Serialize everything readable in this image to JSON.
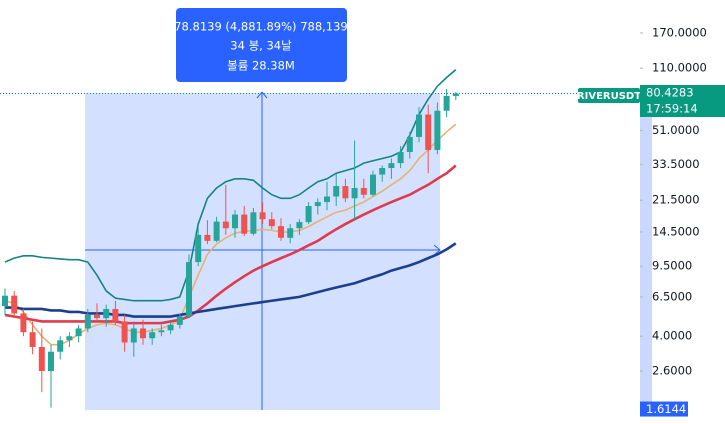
{
  "chart_data": {
    "type": "candlestick",
    "log_scale": true,
    "ylim": [
      1.35,
      255.6
    ],
    "yticks": [
      {
        "value": 170,
        "label": "170.0000"
      },
      {
        "value": 110,
        "label": "110.0000"
      },
      {
        "value": 51,
        "label": "51.0000"
      },
      {
        "value": 33.5,
        "label": "33.5000"
      },
      {
        "value": 21.5,
        "label": "21.5000"
      },
      {
        "value": 14.5,
        "label": "14.5000"
      },
      {
        "value": 9.5,
        "label": "9.5000"
      },
      {
        "value": 6.5,
        "label": "6.5000"
      },
      {
        "value": 4.0,
        "label": "4.0000"
      },
      {
        "value": 2.6,
        "label": "2.6000"
      }
    ],
    "up_color": "#26a69a",
    "down_color": "#ef5350",
    "candles": {
      "open": [
        5.8,
        6.6,
        5.3,
        4.2,
        3.5,
        2.6,
        3.3,
        3.8,
        4.0,
        4.4,
        5.2,
        5.0,
        5.6,
        4.8,
        3.7,
        4.4,
        3.9,
        4.2,
        4.3,
        4.6,
        5.1,
        10.0,
        14.0,
        13.0,
        16.5,
        15.2,
        18.0,
        14.2,
        18.5,
        17.0,
        15.6,
        13.5,
        15.2,
        16.4,
        20.0,
        21.0,
        22.5,
        25.6,
        22.0,
        25.0,
        23.0,
        29.5,
        32.0,
        34.0,
        39.0,
        47.0,
        62.0,
        40.0,
        65.0,
        78.0
      ],
      "high": [
        7.2,
        7.0,
        5.6,
        4.8,
        4.4,
        3.6,
        4.0,
        4.2,
        4.6,
        5.6,
        6.0,
        5.9,
        6.2,
        5.2,
        4.8,
        4.9,
        4.4,
        4.6,
        4.8,
        5.3,
        11.0,
        15.5,
        16.8,
        17.5,
        26.0,
        19.0,
        20.0,
        19.5,
        21.0,
        18.5,
        17.2,
        16.0,
        17.0,
        21.0,
        22.0,
        27.0,
        30.0,
        28.0,
        45.0,
        28.0,
        31.0,
        33.0,
        36.0,
        42.0,
        50.0,
        68.0,
        70.0,
        72.0,
        85.0,
        82.0
      ],
      "low": [
        5.2,
        5.0,
        4.0,
        3.2,
        2.0,
        1.65,
        3.0,
        3.5,
        3.7,
        4.2,
        4.8,
        4.5,
        4.6,
        3.3,
        3.1,
        3.6,
        3.6,
        4.0,
        4.1,
        4.4,
        5.0,
        9.5,
        12.5,
        12.8,
        14.0,
        13.5,
        13.8,
        13.9,
        16.0,
        15.0,
        13.0,
        12.6,
        14.0,
        16.0,
        18.0,
        19.0,
        20.0,
        21.0,
        17.0,
        22.0,
        22.5,
        27.0,
        28.0,
        32.0,
        36.0,
        44.0,
        30.0,
        38.0,
        60.0,
        74.0
      ],
      "close": [
        6.6,
        5.3,
        4.2,
        3.5,
        2.6,
        3.3,
        3.8,
        4.0,
        4.4,
        5.2,
        5.0,
        5.6,
        4.8,
        3.7,
        4.4,
        3.9,
        4.2,
        4.3,
        4.6,
        5.1,
        10.0,
        14.0,
        13.0,
        16.5,
        15.2,
        18.0,
        14.2,
        18.5,
        17.0,
        15.6,
        13.5,
        15.2,
        16.4,
        20.0,
        21.0,
        22.5,
        25.6,
        22.0,
        25.0,
        23.0,
        29.5,
        32.0,
        34.0,
        39.0,
        47.0,
        62.0,
        40.0,
        65.0,
        78.0,
        80.4283
      ]
    },
    "series": [
      {
        "color": "#138484",
        "values": [
          10,
          10.5,
          10.8,
          10.8,
          10.6,
          10.5,
          10.4,
          10.3,
          10.3,
          10,
          8.5,
          7,
          6.4,
          6.3,
          6.2,
          6.2,
          6.2,
          6.2,
          6.3,
          6.5,
          9,
          16,
          22,
          25,
          27,
          28,
          28,
          27.5,
          25,
          23,
          22,
          22,
          23,
          25,
          27,
          28,
          30,
          31,
          32,
          34,
          35,
          36,
          37,
          39,
          48,
          62,
          75,
          88,
          98,
          108
        ]
      },
      {
        "color": "#e8b270",
        "values": [
          6.2,
          6.0,
          5.4,
          4.6,
          4.0,
          3.6,
          3.6,
          3.8,
          4.1,
          4.4,
          4.6,
          4.7,
          4.6,
          4.4,
          4.2,
          4.2,
          4.3,
          4.4,
          4.6,
          4.9,
          6.5,
          8.5,
          11,
          12.5,
          13.5,
          14.3,
          14.6,
          14.8,
          15,
          14.8,
          14.5,
          14.5,
          14.8,
          15.5,
          16.5,
          17.5,
          18.5,
          19,
          20,
          21,
          22.5,
          24,
          26,
          28,
          31,
          36,
          40,
          45,
          50,
          55
        ]
      },
      {
        "color": "#e03a4e",
        "values": [
          5.2,
          5.1,
          5.0,
          4.9,
          4.8,
          4.8,
          4.8,
          4.8,
          4.8,
          4.8,
          4.8,
          4.8,
          4.8,
          4.7,
          4.7,
          4.7,
          4.7,
          4.7,
          4.8,
          4.9,
          5.1,
          5.5,
          6,
          6.6,
          7.2,
          7.8,
          8.4,
          9,
          9.5,
          10,
          10.5,
          11,
          11.6,
          12.3,
          13,
          14,
          15,
          16,
          17,
          18,
          19,
          20,
          21,
          22,
          23,
          24.5,
          26,
          28,
          30,
          33
        ]
      },
      {
        "color": "#1d3f8f",
        "values": [
          5.7,
          5.7,
          5.6,
          5.6,
          5.6,
          5.5,
          5.5,
          5.4,
          5.4,
          5.3,
          5.3,
          5.3,
          5.2,
          5.2,
          5.1,
          5.1,
          5.1,
          5.1,
          5.1,
          5.2,
          5.3,
          5.4,
          5.5,
          5.6,
          5.7,
          5.8,
          5.9,
          6,
          6.1,
          6.2,
          6.3,
          6.4,
          6.5,
          6.7,
          6.9,
          7.1,
          7.3,
          7.5,
          7.7,
          8,
          8.3,
          8.6,
          9,
          9.3,
          9.6,
          10,
          10.5,
          11,
          11.7,
          12.6
        ]
      }
    ],
    "tooltip": [
      "78.8139 (4,881.89%) 788,139",
      "34 봉, 34날",
      "볼륨 28.38M"
    ],
    "symbol": "RIVERUSDT",
    "countdown": "17:59:14",
    "range_low": 1.6144
  }
}
